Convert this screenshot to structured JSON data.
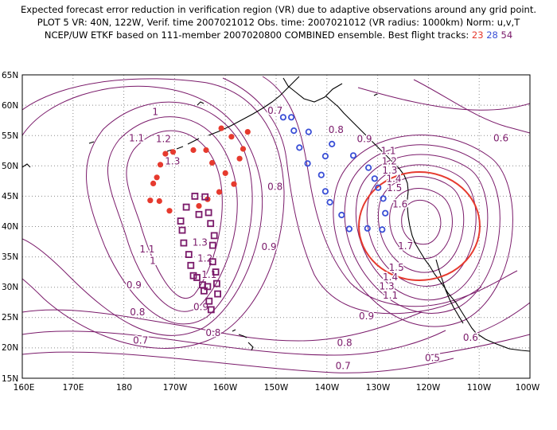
{
  "header": {
    "line1": "Expected forecast error reduction in verification region (VR) due to adaptive observations around any grid point.",
    "line2": "PLOT 5 VR: 40N, 122W, Verif. time 2007021012 Obs. time: 2007021012 (VR radius: 1000km) Norm: u,v,T",
    "line3_prefix": "NCEP/UW ETKF based on 111-member 2007020800 COMBINED ensemble.  Best flight tracks:",
    "track_ids": [
      "23",
      "28",
      "54"
    ]
  },
  "colors": {
    "contour": "#7a1a6a",
    "coast": "#000000",
    "grid": "#8a8a8a",
    "track_23": "#e63a2e",
    "track_28": "#3a4fd6",
    "track_54": "#7a1a6a",
    "vr_circle": "#e63a2e"
  },
  "axes": {
    "x_ticks": [
      "160E",
      "170E",
      "180",
      "170W",
      "160W",
      "150W",
      "140W",
      "130W",
      "120W",
      "110W",
      "100W"
    ],
    "y_ticks": [
      "65N",
      "60N",
      "55N",
      "50N",
      "45N",
      "40N",
      "35N",
      "30N",
      "25N",
      "20N",
      "15N"
    ]
  },
  "contour_labels": [
    {
      "text": "1",
      "lon": -173.8,
      "lat": 58.8
    },
    {
      "text": "1.1",
      "lon": -177.5,
      "lat": 54.5
    },
    {
      "text": "1.2",
      "lon": -172.2,
      "lat": 54.4
    },
    {
      "text": "1.3",
      "lon": -170.4,
      "lat": 50.7
    },
    {
      "text": "1.3",
      "lon": -165.0,
      "lat": 37.3
    },
    {
      "text": "1.2",
      "lon": -164.0,
      "lat": 34.7
    },
    {
      "text": "1.1",
      "lon": -163.2,
      "lat": 32.0
    },
    {
      "text": "1.1",
      "lon": -175.4,
      "lat": 36.2
    },
    {
      "text": "1",
      "lon": -174.3,
      "lat": 34.3
    },
    {
      "text": "0.9",
      "lon": -178.0,
      "lat": 30.3
    },
    {
      "text": "0.8",
      "lon": -177.3,
      "lat": 25.8
    },
    {
      "text": "0.7",
      "lon": -176.7,
      "lat": 21.2
    },
    {
      "text": "0.9",
      "lon": -164.8,
      "lat": 26.7
    },
    {
      "text": "0.8",
      "lon": -162.4,
      "lat": 22.4
    },
    {
      "text": "0.7",
      "lon": -150.2,
      "lat": 59.0
    },
    {
      "text": "0.8",
      "lon": -150.2,
      "lat": 46.5
    },
    {
      "text": "0.9",
      "lon": -151.4,
      "lat": 36.6
    },
    {
      "text": "0.8",
      "lon": -138.2,
      "lat": 55.9
    },
    {
      "text": "0.9",
      "lon": -132.6,
      "lat": 54.4
    },
    {
      "text": "1.1",
      "lon": -127.9,
      "lat": 52.4
    },
    {
      "text": "1.2",
      "lon": -127.7,
      "lat": 50.7
    },
    {
      "text": "1.3",
      "lon": -127.6,
      "lat": 49.2
    },
    {
      "text": "1.4",
      "lon": -126.8,
      "lat": 47.8
    },
    {
      "text": "1.5",
      "lon": -126.7,
      "lat": 46.3
    },
    {
      "text": "1.6",
      "lon": -125.6,
      "lat": 43.6
    },
    {
      "text": "1.7",
      "lon": -124.5,
      "lat": 36.7
    },
    {
      "text": "1.5",
      "lon": -126.3,
      "lat": 33.2
    },
    {
      "text": "1.4",
      "lon": -127.5,
      "lat": 31.6
    },
    {
      "text": "1.3",
      "lon": -128.2,
      "lat": 30.1
    },
    {
      "text": "1.1",
      "lon": -127.5,
      "lat": 28.6
    },
    {
      "text": "0.9",
      "lon": -132.2,
      "lat": 25.2
    },
    {
      "text": "0.8",
      "lon": -136.5,
      "lat": 20.8
    },
    {
      "text": "0.7",
      "lon": -136.8,
      "lat": 17.0
    },
    {
      "text": "0.6",
      "lon": -105.7,
      "lat": 54.5
    },
    {
      "text": "0.6",
      "lon": -111.7,
      "lat": 21.6
    },
    {
      "text": "0.5",
      "lon": -119.2,
      "lat": 18.3
    }
  ],
  "tracks": {
    "t23": [
      {
        "lon": -160.8,
        "lat": 56.2
      },
      {
        "lon": -158.8,
        "lat": 54.8
      },
      {
        "lon": -157.2,
        "lat": 51.2
      },
      {
        "lon": -158.3,
        "lat": 47.0
      },
      {
        "lon": -160.0,
        "lat": 48.8
      },
      {
        "lon": -162.6,
        "lat": 50.5
      },
      {
        "lon": -163.8,
        "lat": 52.6
      },
      {
        "lon": -155.6,
        "lat": 55.6
      },
      {
        "lon": -166.3,
        "lat": 52.6
      },
      {
        "lon": -170.3,
        "lat": 52.3
      },
      {
        "lon": -171.8,
        "lat": 52.0
      },
      {
        "lon": -172.8,
        "lat": 50.2
      },
      {
        "lon": -173.5,
        "lat": 48.1
      },
      {
        "lon": -174.2,
        "lat": 47.1
      },
      {
        "lon": -174.8,
        "lat": 44.3
      },
      {
        "lon": -173.0,
        "lat": 44.2
      },
      {
        "lon": -171.0,
        "lat": 42.6
      },
      {
        "lon": -165.2,
        "lat": 43.4
      },
      {
        "lon": -163.5,
        "lat": 44.5
      },
      {
        "lon": -161.2,
        "lat": 45.7
      },
      {
        "lon": -156.5,
        "lat": 52.8
      }
    ],
    "t28": [
      {
        "lon": -148.6,
        "lat": 58.0
      },
      {
        "lon": -147.0,
        "lat": 58.0
      },
      {
        "lon": -146.5,
        "lat": 55.8
      },
      {
        "lon": -143.6,
        "lat": 55.6
      },
      {
        "lon": -139.0,
        "lat": 53.6
      },
      {
        "lon": -145.4,
        "lat": 53.0
      },
      {
        "lon": -140.3,
        "lat": 51.6
      },
      {
        "lon": -134.8,
        "lat": 51.7
      },
      {
        "lon": -131.8,
        "lat": 49.7
      },
      {
        "lon": -143.8,
        "lat": 50.4
      },
      {
        "lon": -141.1,
        "lat": 48.5
      },
      {
        "lon": -130.6,
        "lat": 47.9
      },
      {
        "lon": -129.9,
        "lat": 46.4
      },
      {
        "lon": -140.3,
        "lat": 45.8
      },
      {
        "lon": -128.9,
        "lat": 44.6
      },
      {
        "lon": -139.4,
        "lat": 44.0
      },
      {
        "lon": -128.5,
        "lat": 42.2
      },
      {
        "lon": -137.1,
        "lat": 41.9
      },
      {
        "lon": -135.6,
        "lat": 39.6
      },
      {
        "lon": -132.0,
        "lat": 39.7
      },
      {
        "lon": -129.1,
        "lat": 39.5
      }
    ],
    "t54": [
      {
        "lon": -166.0,
        "lat": 45.0
      },
      {
        "lon": -164.0,
        "lat": 44.9
      },
      {
        "lon": -167.7,
        "lat": 43.2
      },
      {
        "lon": -165.2,
        "lat": 42.0
      },
      {
        "lon": -163.3,
        "lat": 42.3
      },
      {
        "lon": -168.8,
        "lat": 40.9
      },
      {
        "lon": -162.9,
        "lat": 40.5
      },
      {
        "lon": -168.5,
        "lat": 39.4
      },
      {
        "lon": -162.2,
        "lat": 38.5
      },
      {
        "lon": -168.2,
        "lat": 37.3
      },
      {
        "lon": -162.5,
        "lat": 36.9
      },
      {
        "lon": -167.2,
        "lat": 35.4
      },
      {
        "lon": -162.5,
        "lat": 34.2
      },
      {
        "lon": -166.8,
        "lat": 33.6
      },
      {
        "lon": -161.9,
        "lat": 32.5
      },
      {
        "lon": -166.3,
        "lat": 31.9
      },
      {
        "lon": -165.6,
        "lat": 31.6
      },
      {
        "lon": -161.7,
        "lat": 30.6
      },
      {
        "lon": -164.5,
        "lat": 30.4
      },
      {
        "lon": -163.5,
        "lat": 30.1
      },
      {
        "lon": -164.2,
        "lat": 29.4
      },
      {
        "lon": -161.5,
        "lat": 28.9
      },
      {
        "lon": -163.2,
        "lat": 27.7
      },
      {
        "lon": -162.8,
        "lat": 26.3
      }
    ]
  },
  "verification_region": {
    "center_lat": 40,
    "center_lon": -122,
    "radius_km": 1000
  }
}
